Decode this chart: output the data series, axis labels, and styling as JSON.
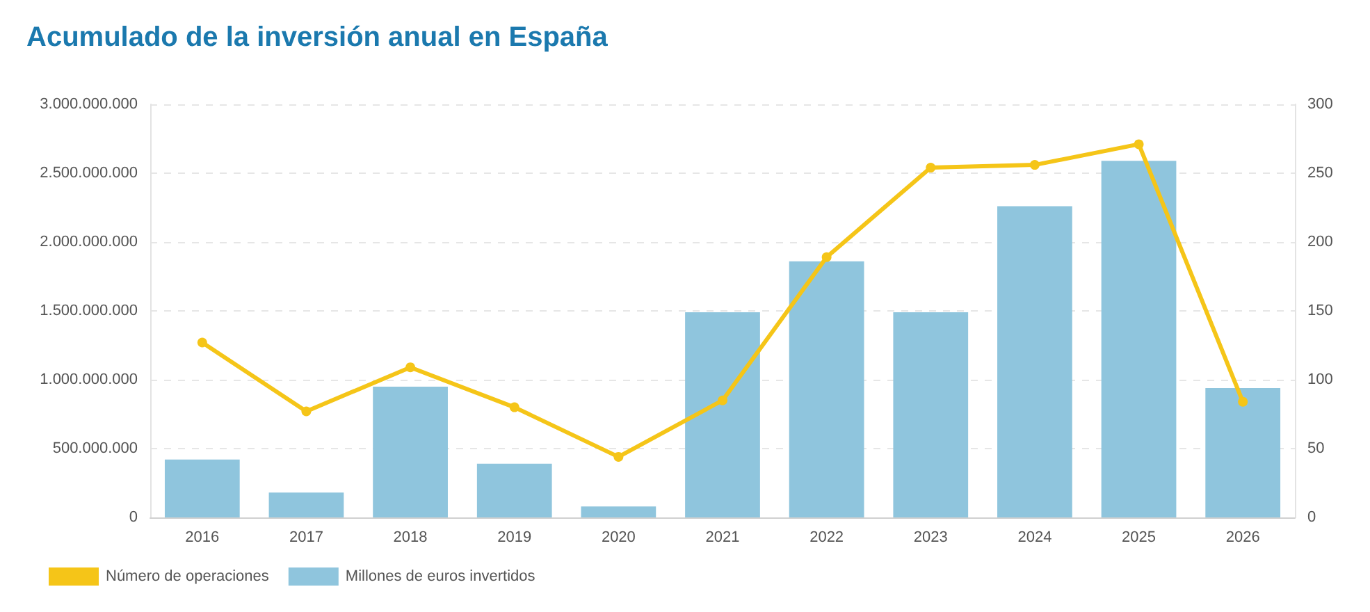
{
  "chart_data": {
    "type": "bar",
    "title": "Acumulado de la inversión anual en España",
    "categories": [
      "2016",
      "2017",
      "2018",
      "2019",
      "2020",
      "2021",
      "2022",
      "2023",
      "2024",
      "2025",
      "2026"
    ],
    "series": [
      {
        "name": "Número de operaciones",
        "type": "line",
        "axis": "y2",
        "color": "#f5c518",
        "values": [
          127,
          77,
          109,
          80,
          44,
          85,
          189,
          254,
          256,
          271,
          84
        ]
      },
      {
        "name": "Millones de euros invertidos",
        "color": "#8fc5dd",
        "values": [
          420000000,
          180000000,
          950000000,
          390000000,
          80000000,
          1490000000,
          1860000000,
          1490000000,
          2260000000,
          2590000000,
          940000000
        ]
      }
    ],
    "ylim": [
      0,
      3000000000
    ],
    "yticks": [
      0,
      {
        "value": 500000000,
        "label": "500.000.000"
      },
      {
        "value": 1000000000,
        "label": "1.000.000.000"
      },
      {
        "value": 1500000000,
        "label": "1.500.000.000"
      },
      {
        "value": 2000000000,
        "label": "2.000.000.000"
      },
      {
        "value": 2500000000,
        "label": "2.500.000.000"
      },
      {
        "value": 3000000000,
        "label": "3.000.000.000"
      }
    ],
    "y2lim": [
      0,
      300
    ],
    "y2ticks": [
      0,
      50,
      100,
      150,
      200,
      250,
      300
    ],
    "grid": "y",
    "legend": "bottom left",
    "marker": "circle"
  }
}
